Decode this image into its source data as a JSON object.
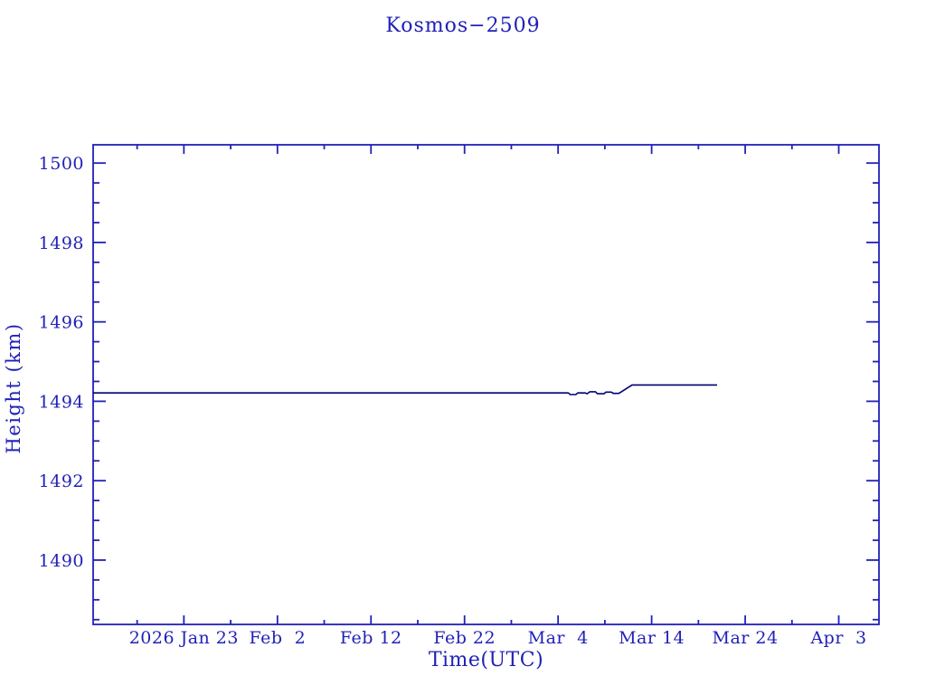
{
  "colors": {
    "background": "#ffffff",
    "axis": "#2121b8",
    "text": "#2121b8",
    "line": "#000077"
  },
  "chart_data": {
    "type": "line",
    "title": "Kosmos−2509",
    "xlabel": "Time(UTC)",
    "ylabel": "Height (km)",
    "legend": "none",
    "grid": false,
    "x_axis": {
      "day_zero_date": "2026 Jan 13 (approx, unlabeled left edge)",
      "xlim_days": [
        0.3,
        84.3
      ],
      "major_tick_days": [
        10,
        20,
        30,
        40,
        50,
        60,
        70,
        80
      ],
      "major_tick_labels": [
        "2026 Jan 23",
        "Feb  2",
        "Feb 12",
        "Feb 22",
        "Mar  4",
        "Mar 14",
        "Mar 24",
        "Apr  3"
      ],
      "minor_tick_interval_days": 5
    },
    "y_axis": {
      "ylim": [
        1488.38,
        1500.46
      ],
      "major_ticks": [
        1490,
        1492,
        1494,
        1496,
        1498,
        1500
      ],
      "major_tick_labels": [
        "1490",
        "1492",
        "1494",
        "1496",
        "1498",
        "1500"
      ],
      "minor_tick_interval": 0.5
    },
    "series": [
      {
        "name": "height",
        "points_day_km": [
          [
            0.3,
            1494.21
          ],
          [
            51.1,
            1494.21
          ],
          [
            51.3,
            1494.17
          ],
          [
            51.9,
            1494.17
          ],
          [
            52.1,
            1494.21
          ],
          [
            52.9,
            1494.21
          ],
          [
            53.1,
            1494.19
          ],
          [
            53.4,
            1494.24
          ],
          [
            54.0,
            1494.24
          ],
          [
            54.2,
            1494.19
          ],
          [
            54.9,
            1494.19
          ],
          [
            55.1,
            1494.23
          ],
          [
            55.7,
            1494.23
          ],
          [
            55.9,
            1494.2
          ],
          [
            56.5,
            1494.2
          ],
          [
            57.9,
            1494.41
          ],
          [
            67.0,
            1494.41
          ]
        ]
      }
    ]
  }
}
